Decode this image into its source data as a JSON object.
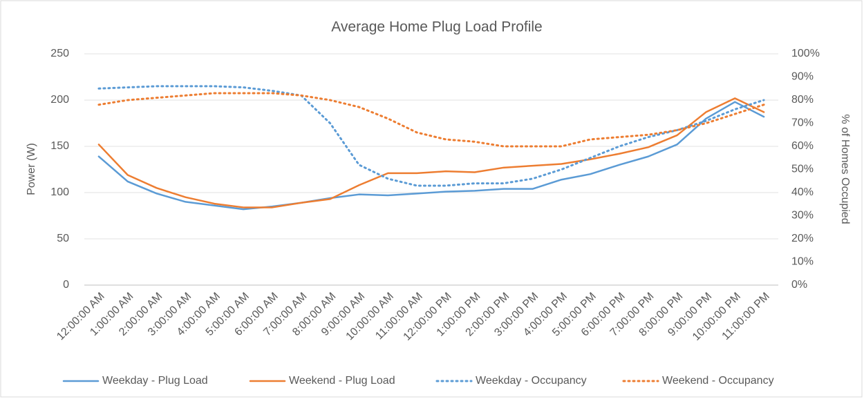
{
  "chart_data": {
    "type": "line",
    "title": "Average Home Plug Load Profile",
    "y_label": "Power (W)",
    "y2_label": "% of Homes Occupied",
    "categories": [
      "12:00:00 AM",
      "1:00:00 AM",
      "2:00:00 AM",
      "3:00:00 AM",
      "4:00:00 AM",
      "5:00:00 AM",
      "6:00:00 AM",
      "7:00:00 AM",
      "8:00:00 AM",
      "9:00:00 AM",
      "10:00:00 AM",
      "11:00:00 AM",
      "12:00:00 PM",
      "1:00:00 PM",
      "2:00:00 PM",
      "3:00:00 PM",
      "4:00:00 PM",
      "5:00:00 PM",
      "6:00:00 PM",
      "7:00:00 PM",
      "8:00:00 PM",
      "9:00:00 PM",
      "10:00:00 PM",
      "11:00:00 PM"
    ],
    "series": [
      {
        "name": "Weekday - Plug Load",
        "color": "#5b9bd5",
        "line_style": "solid",
        "values": [
          139,
          112,
          99,
          90,
          86,
          82,
          85,
          89,
          94,
          98,
          97,
          99,
          101,
          102,
          104,
          104,
          114,
          120,
          130,
          139,
          152,
          180,
          198,
          182
        ]
      },
      {
        "name": "Weekend - Plug Load",
        "color": "#ed7d31",
        "line_style": "solid",
        "values": [
          152,
          119,
          105,
          95,
          88,
          84,
          84,
          89,
          93,
          108,
          121,
          121,
          123,
          122,
          127,
          129,
          131,
          136,
          142,
          149,
          162,
          187,
          202,
          187
        ]
      },
      {
        "name": "Weekday - Occupancy",
        "color": "#5b9bd5",
        "line_style": "dotted",
        "axis": "y2",
        "values": [
          85,
          85.5,
          86,
          86,
          86,
          85.5,
          84,
          82,
          70,
          52,
          46,
          43,
          43,
          44,
          44,
          46,
          50,
          55,
          60,
          64,
          67,
          71,
          76,
          80
        ]
      },
      {
        "name": "Weekend - Occupancy",
        "color": "#ed7d31",
        "line_style": "dotted",
        "axis": "y2",
        "values": [
          78,
          80,
          81,
          82,
          83,
          83,
          83,
          82,
          80,
          77,
          72,
          66,
          63,
          62,
          60,
          60,
          60,
          63,
          64,
          65,
          67,
          70,
          74,
          78
        ]
      }
    ],
    "ylim": [
      0,
      250
    ],
    "yticks": [
      0,
      50,
      100,
      150,
      200,
      250
    ],
    "y2lim": [
      0,
      100
    ],
    "y2ticks": [
      {
        "value": 0,
        "label": "0%"
      },
      {
        "value": 10,
        "label": "10%"
      },
      {
        "value": 20,
        "label": "20%"
      },
      {
        "value": 30,
        "label": "30%"
      },
      {
        "value": 40,
        "label": "40%"
      },
      {
        "value": 50,
        "label": "50%"
      },
      {
        "value": 60,
        "label": "60%"
      },
      {
        "value": 70,
        "label": "70%"
      },
      {
        "value": 80,
        "label": "80%"
      },
      {
        "value": 90,
        "label": "90%"
      },
      {
        "value": 100,
        "label": "100%"
      }
    ],
    "grid": true,
    "legend": "bottom"
  }
}
